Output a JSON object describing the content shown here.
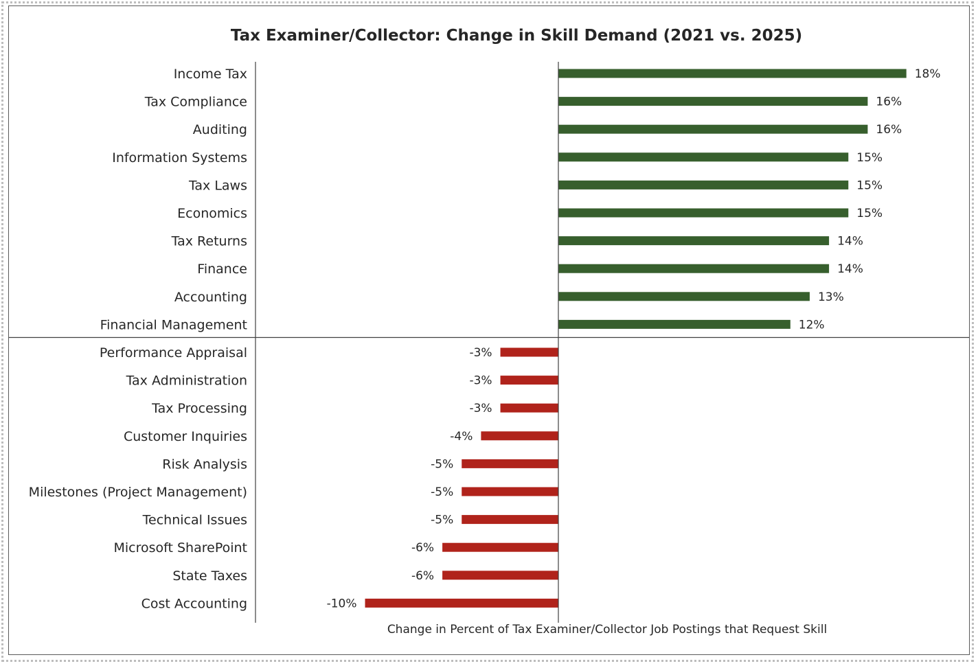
{
  "chart_data": {
    "type": "bar",
    "orientation": "horizontal",
    "title": "Tax Examiner/Collector: Change in Skill Demand (2021 vs. 2025)",
    "xlabel": "Change in Percent of Tax Examiner/Collector Job Postings that Request Skill",
    "ylabel": "",
    "xlim": [
      -0.17,
      0.18
    ],
    "grid": false,
    "legend": "none",
    "colors": {
      "positive": "#375F2D",
      "negative": "#B0231B"
    },
    "categories": [
      "Income Tax",
      "Tax Compliance",
      "Auditing",
      "Information Systems",
      "Tax Laws",
      "Economics",
      "Tax Returns",
      "Finance",
      "Accounting",
      "Financial Management",
      "Performance Appraisal",
      "Tax Administration",
      "Tax Processing",
      "Customer Inquiries",
      "Risk Analysis",
      "Milestones (Project Management)",
      "Technical Issues",
      "Microsoft SharePoint",
      "State Taxes",
      "Cost Accounting"
    ],
    "values": [
      0.18,
      0.16,
      0.16,
      0.15,
      0.15,
      0.15,
      0.14,
      0.14,
      0.13,
      0.12,
      -0.03,
      -0.03,
      -0.03,
      -0.04,
      -0.05,
      -0.05,
      -0.05,
      -0.06,
      -0.06,
      -0.1
    ],
    "data_labels": [
      "18%",
      "16%",
      "16%",
      "15%",
      "15%",
      "15%",
      "14%",
      "14%",
      "13%",
      "12%",
      "-3%",
      "-3%",
      "-3%",
      "-4%",
      "-5%",
      "-5%",
      "-5%",
      "-6%",
      "-6%",
      "-10%"
    ]
  }
}
